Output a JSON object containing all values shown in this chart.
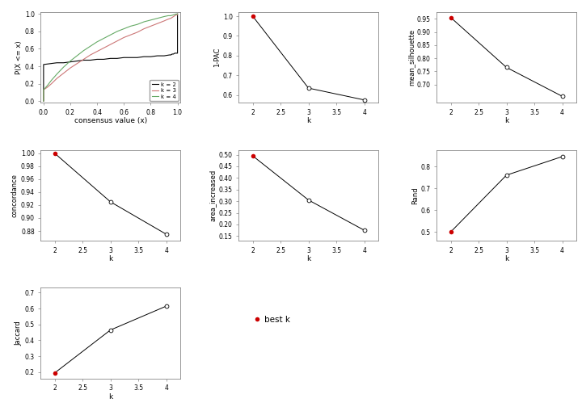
{
  "ecdf": {
    "k2": {
      "x": [
        0.0,
        0.001,
        0.001,
        0.05,
        0.1,
        0.12,
        0.15,
        0.2,
        0.25,
        0.3,
        0.35,
        0.4,
        0.45,
        0.5,
        0.55,
        0.6,
        0.65,
        0.7,
        0.75,
        0.8,
        0.85,
        0.9,
        0.94,
        0.95,
        0.96,
        0.97,
        0.98,
        0.99,
        1.0,
        1.0
      ],
      "y": [
        0.0,
        0.0,
        0.42,
        0.43,
        0.44,
        0.44,
        0.44,
        0.45,
        0.46,
        0.47,
        0.47,
        0.48,
        0.48,
        0.49,
        0.49,
        0.5,
        0.5,
        0.5,
        0.51,
        0.51,
        0.52,
        0.52,
        0.53,
        0.53,
        0.54,
        0.54,
        0.55,
        0.55,
        0.55,
        1.0
      ],
      "color": "#000000",
      "label": "k = 2"
    },
    "k3": {
      "x": [
        0.0,
        0.001,
        0.001,
        0.03,
        0.06,
        0.1,
        0.15,
        0.2,
        0.25,
        0.3,
        0.35,
        0.4,
        0.45,
        0.5,
        0.55,
        0.6,
        0.65,
        0.7,
        0.75,
        0.8,
        0.85,
        0.9,
        0.93,
        0.95,
        0.97,
        0.99,
        1.0,
        1.0
      ],
      "y": [
        0.0,
        0.0,
        0.13,
        0.16,
        0.2,
        0.26,
        0.32,
        0.38,
        0.43,
        0.48,
        0.53,
        0.57,
        0.61,
        0.65,
        0.69,
        0.73,
        0.76,
        0.79,
        0.83,
        0.86,
        0.89,
        0.92,
        0.94,
        0.95,
        0.97,
        0.99,
        0.99,
        1.0
      ],
      "color": "#cc7777",
      "label": "k = 3"
    },
    "k4": {
      "x": [
        0.0,
        0.001,
        0.001,
        0.03,
        0.06,
        0.1,
        0.15,
        0.2,
        0.25,
        0.3,
        0.35,
        0.4,
        0.45,
        0.5,
        0.55,
        0.6,
        0.65,
        0.7,
        0.75,
        0.8,
        0.85,
        0.9,
        0.93,
        0.95,
        0.97,
        0.99,
        1.0,
        1.0
      ],
      "y": [
        0.0,
        0.0,
        0.13,
        0.18,
        0.24,
        0.31,
        0.39,
        0.46,
        0.52,
        0.58,
        0.63,
        0.68,
        0.72,
        0.76,
        0.8,
        0.83,
        0.86,
        0.88,
        0.91,
        0.93,
        0.95,
        0.97,
        0.98,
        0.98,
        0.99,
        1.0,
        1.0,
        1.0
      ],
      "color": "#66aa66",
      "label": "k = 4"
    }
  },
  "one_minus_pac": {
    "k": [
      2,
      3,
      4
    ],
    "y": [
      1.0,
      0.635,
      0.575
    ],
    "best_k_idx": 0,
    "ylabel": "1-PAC",
    "ylim": [
      0.56,
      1.02
    ],
    "yticks": [
      0.6,
      0.7,
      0.8,
      0.9,
      1.0
    ]
  },
  "mean_silhouette": {
    "k": [
      2,
      3,
      4
    ],
    "y": [
      0.955,
      0.765,
      0.655
    ],
    "best_k_idx": 0,
    "ylabel": "mean_silhouette",
    "ylim": [
      0.63,
      0.975
    ],
    "yticks": [
      0.7,
      0.75,
      0.8,
      0.85,
      0.9,
      0.95
    ]
  },
  "concordance": {
    "k": [
      2,
      3,
      4
    ],
    "y": [
      1.0,
      0.925,
      0.875
    ],
    "best_k_idx": 0,
    "ylabel": "concordance",
    "ylim": [
      0.865,
      1.005
    ],
    "yticks": [
      0.88,
      0.9,
      0.92,
      0.94,
      0.96,
      0.98,
      1.0
    ]
  },
  "area_increased": {
    "k": [
      2,
      3,
      4
    ],
    "y": [
      0.495,
      0.305,
      0.175
    ],
    "best_k_idx": 0,
    "ylabel": "area_increased",
    "ylim": [
      0.13,
      0.52
    ],
    "yticks": [
      0.15,
      0.2,
      0.25,
      0.3,
      0.35,
      0.4,
      0.45,
      0.5
    ]
  },
  "rand": {
    "k": [
      2,
      3,
      4
    ],
    "y": [
      0.5,
      0.76,
      0.845
    ],
    "best_k_idx": 0,
    "ylabel": "Rand",
    "ylim": [
      0.46,
      0.875
    ],
    "yticks": [
      0.5,
      0.6,
      0.7,
      0.8
    ]
  },
  "jaccard": {
    "k": [
      2,
      3,
      4
    ],
    "y": [
      0.195,
      0.465,
      0.615
    ],
    "best_k_idx": 0,
    "ylabel": "Jaccard",
    "ylim": [
      0.16,
      0.73
    ],
    "yticks": [
      0.2,
      0.3,
      0.4,
      0.5,
      0.6,
      0.7
    ]
  },
  "best_k_color": "#cc0000",
  "open_circle_facecolor": "#ffffff",
  "line_color": "#000000",
  "background_color": "#ffffff",
  "tick_font_size": 5.5,
  "ylabel_font_size": 6.0,
  "xlabel_font_size": 6.5
}
